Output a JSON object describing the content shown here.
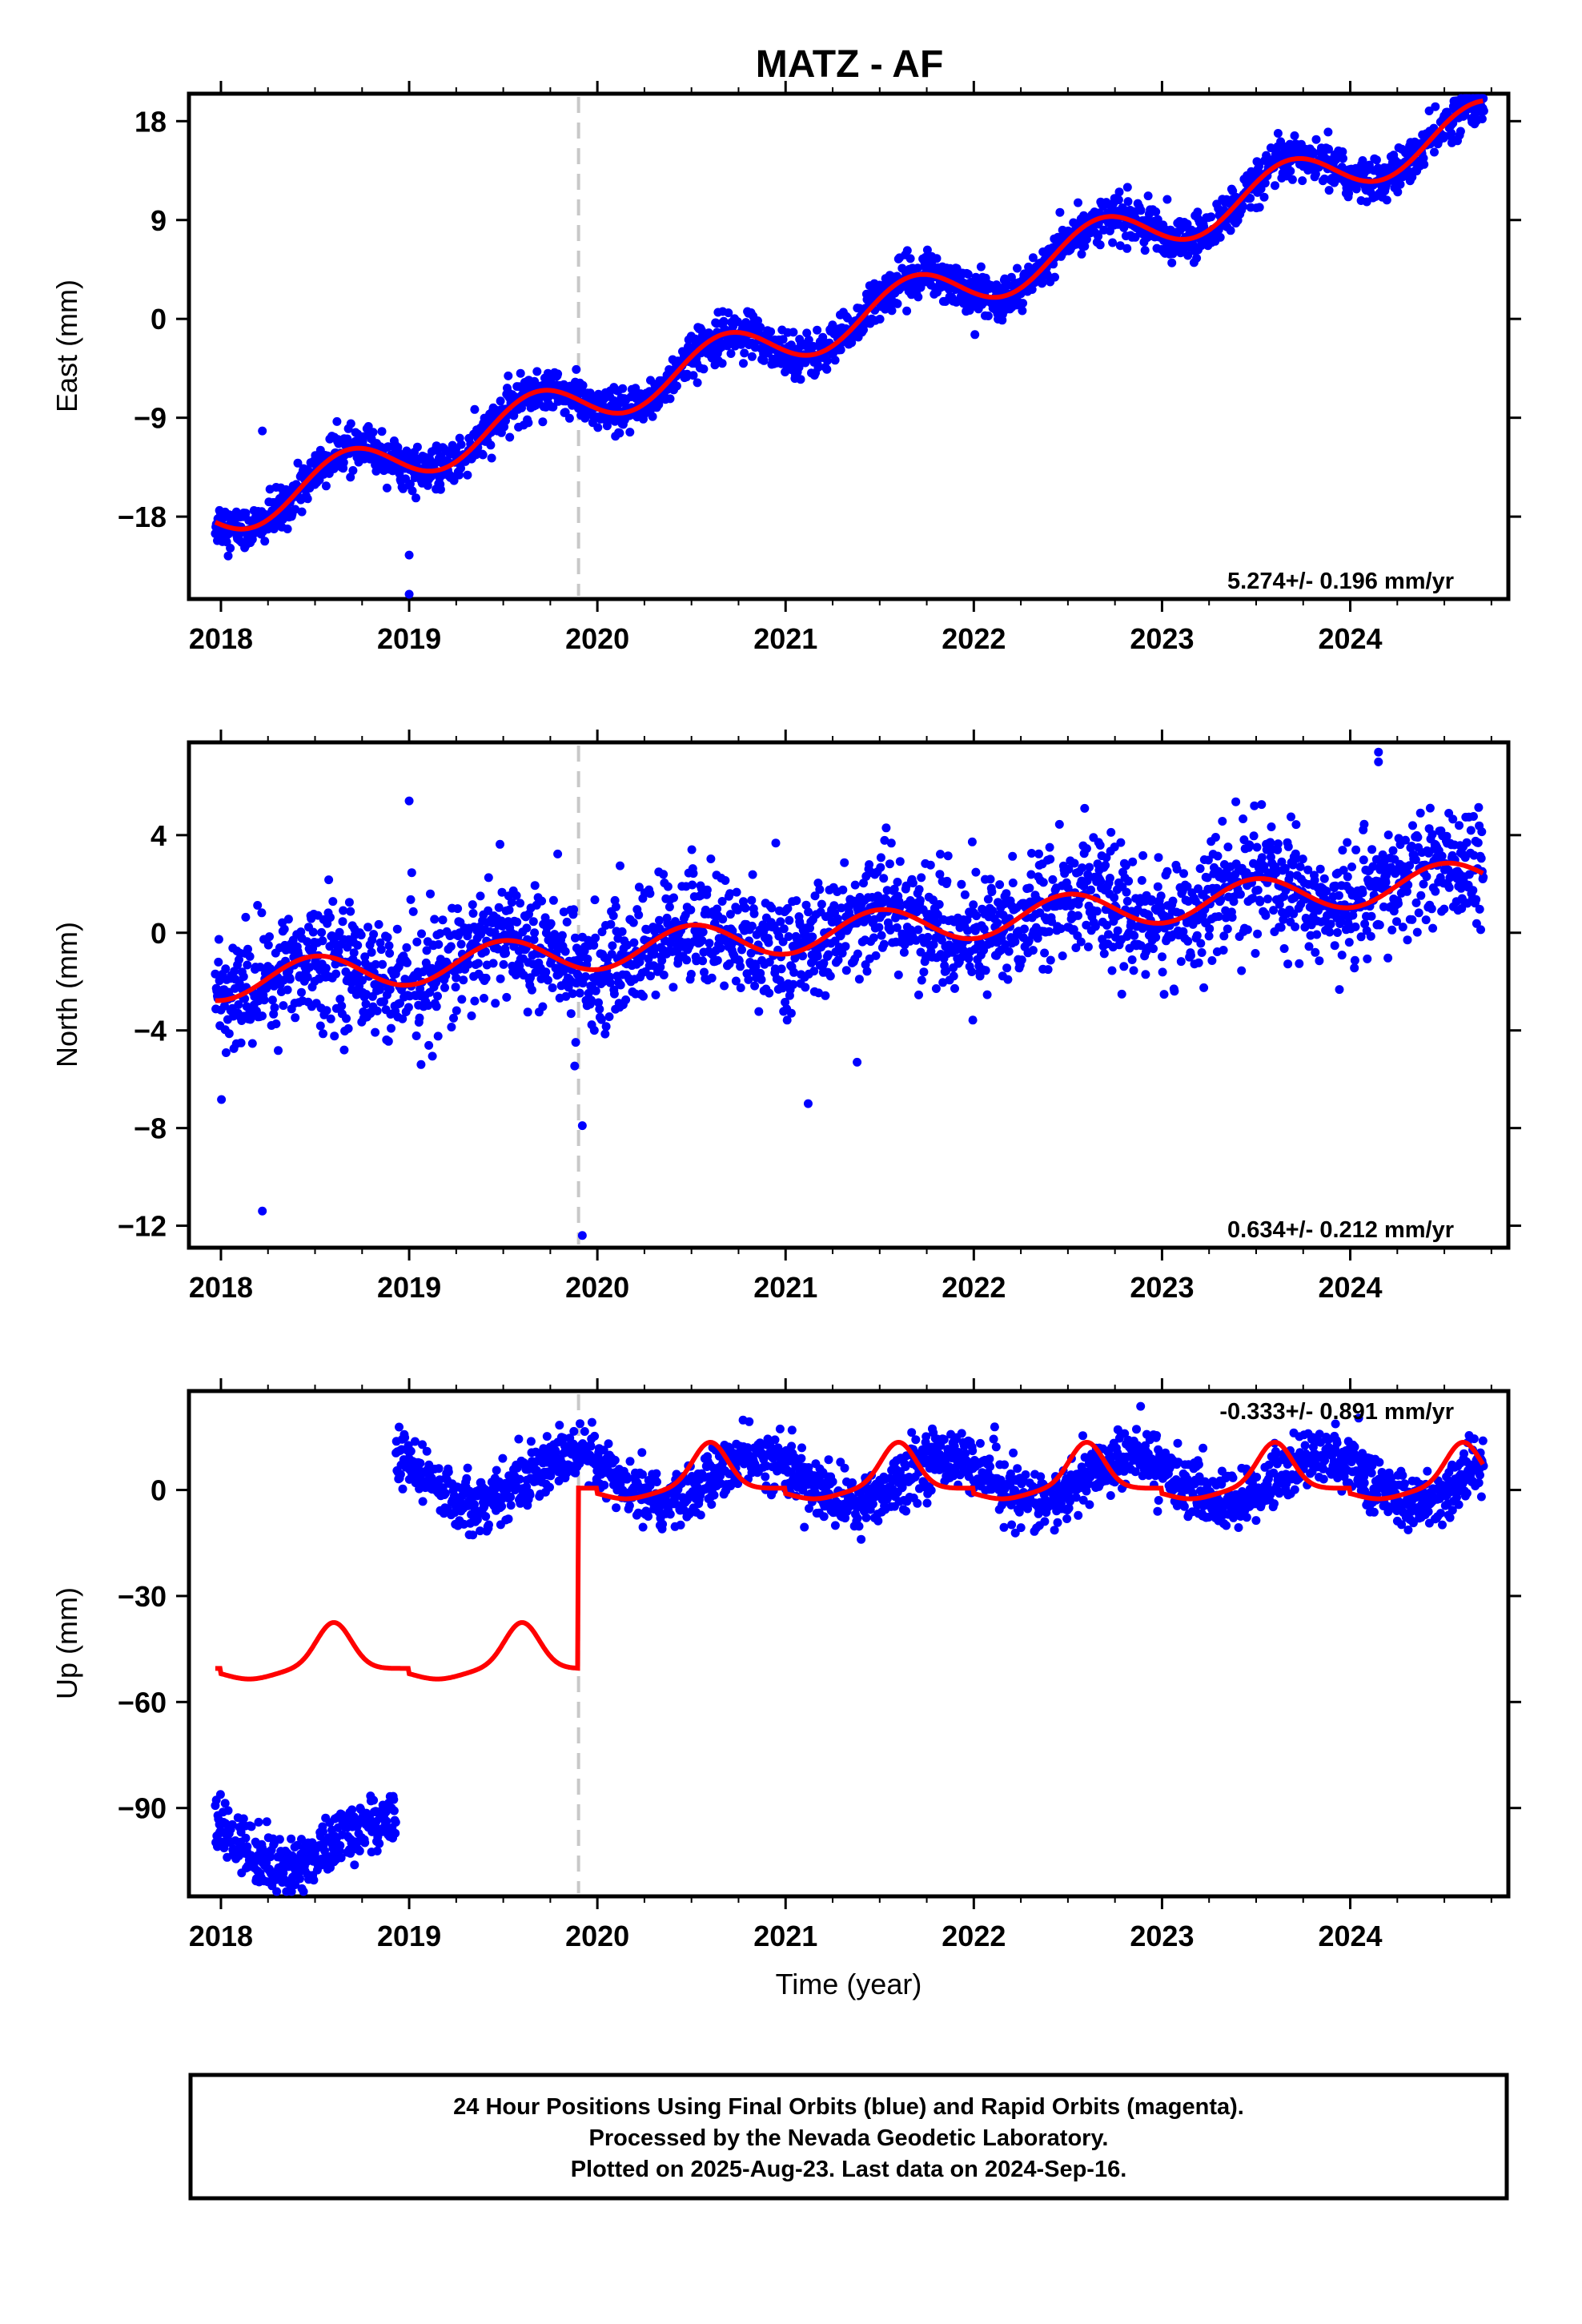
{
  "chart_data": [
    {
      "type": "scatter",
      "title": "MATZ - AF",
      "ylabel": "East (mm)",
      "x_ticks": [
        "2018",
        "2019",
        "2020",
        "2021",
        "2022",
        "2023",
        "2024"
      ],
      "y_ticks": [
        "18",
        "9",
        "0",
        "−9",
        "−18"
      ],
      "y_tick_values": [
        18,
        9,
        0,
        -9,
        -18
      ],
      "xlim": [
        2017.83,
        2024.84
      ],
      "ylim": [
        -25.5,
        20.5
      ],
      "step_epoch": 2019.9,
      "rate_label": "5.274+/- 0.196 mm/yr",
      "series": [
        {
          "name": "Final Orbits (blue)",
          "color": "#0000ff",
          "trend": {
            "slope": 5.274,
            "ref_year": 2021.35,
            "offset": 0,
            "annual_amp": 2.2,
            "annual_phase_year": 0.42,
            "noise": 1.0
          },
          "data_range": [
            2017.97,
            2024.71
          ]
        },
        {
          "name": "model",
          "color": "#ff0000"
        }
      ],
      "outliers": [
        [
          2018.22,
          -10.2
        ],
        [
          2019.0,
          -21.5
        ],
        [
          2019.0,
          -25.2
        ]
      ]
    },
    {
      "type": "scatter",
      "ylabel": "North (mm)",
      "x_ticks": [
        "2018",
        "2019",
        "2020",
        "2021",
        "2022",
        "2023",
        "2024"
      ],
      "y_ticks": [
        "4",
        "0",
        "−4",
        "−8",
        "−12"
      ],
      "y_tick_values": [
        4,
        0,
        -4,
        -8,
        -12
      ],
      "xlim": [
        2017.83,
        2024.84
      ],
      "ylim": [
        -12.9,
        7.8
      ],
      "step_epoch": 2019.9,
      "rate_label": "0.634+/- 0.212 mm/yr",
      "series": [
        {
          "name": "Final Orbits (blue)",
          "color": "#0000ff",
          "trend": {
            "slope": 0.634,
            "ref_year": 2021.35,
            "offset": 0.1,
            "annual_amp": 0.75,
            "annual_phase_year": 0.25,
            "noise": 1.2
          },
          "data_range": [
            2017.97,
            2024.71
          ]
        },
        {
          "name": "model",
          "color": "#ff0000"
        }
      ],
      "outliers": [
        [
          2018.22,
          -11.4
        ],
        [
          2019.0,
          5.4
        ],
        [
          2019.92,
          -7.9
        ],
        [
          2019.92,
          -12.4
        ],
        [
          2021.12,
          -7.0
        ],
        [
          2021.38,
          -5.3
        ],
        [
          2024.15,
          7.4
        ],
        [
          2024.15,
          7.0
        ]
      ]
    },
    {
      "type": "scatter",
      "ylabel": "Up (mm)",
      "xlabel": "Time (year)",
      "x_ticks": [
        "2018",
        "2019",
        "2020",
        "2021",
        "2022",
        "2023",
        "2024"
      ],
      "y_ticks": [
        "0",
        "−30",
        "−60",
        "−90"
      ],
      "y_tick_values": [
        0,
        -30,
        -60,
        -90
      ],
      "xlim": [
        2017.83,
        2024.84
      ],
      "ylim": [
        -115,
        28
      ],
      "step_epoch": 2019.9,
      "rate_label": "-0.333+/- 0.891 mm/yr",
      "series": [
        {
          "name": "Final Orbits (blue)",
          "color": "#0000ff",
          "segments": [
            {
              "range": [
                2017.97,
                2018.93
              ],
              "offset": -100,
              "annual_amp": 6.5,
              "annual_phase_year": 0.6,
              "noise": 4.0
            },
            {
              "range": [
                2018.93,
                2024.71
              ],
              "offset": 3,
              "annual_amp": 6.5,
              "annual_phase_year": 0.6,
              "noise": 4.0
            }
          ]
        },
        {
          "name": "model",
          "color": "#ff0000",
          "segments": [
            {
              "range": [
                2017.97,
                2019.9
              ],
              "offset": -50.5
            },
            {
              "range": [
                2019.9,
                2024.71
              ],
              "offset": 0.5
            }
          ]
        }
      ]
    }
  ],
  "footer": {
    "line1": "24 Hour Positions Using Final Orbits (blue) and Rapid Orbits (magenta).",
    "line2": "Processed by the Nevada Geodetic Laboratory.",
    "line3": "Plotted on 2025-Aug-23. Last data on 2024-Sep-16."
  }
}
